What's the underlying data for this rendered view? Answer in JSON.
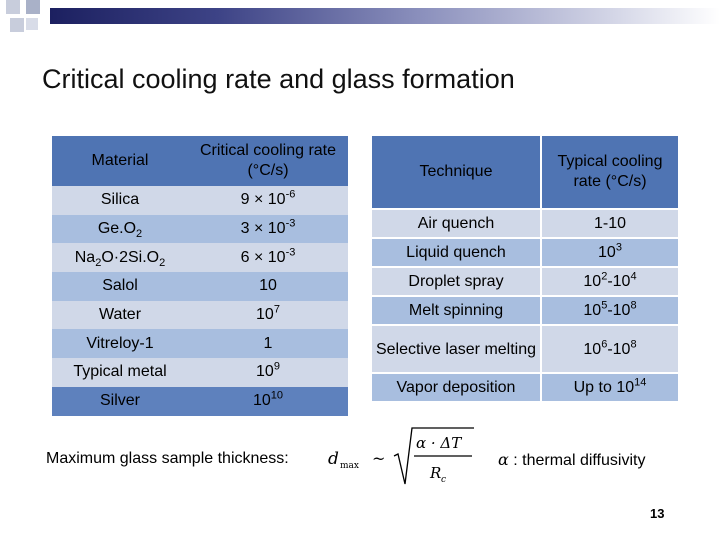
{
  "title": "Critical cooling rate and glass formation",
  "left_table": {
    "headers": [
      "Material",
      "Critical cooling rate (°C/s)"
    ],
    "rows": [
      {
        "material": "Silica",
        "rate_base": "9 × 10",
        "rate_exp": "-6"
      },
      {
        "material_base": "Ge.O",
        "material_sub": "2",
        "rate_base": "3 × 10",
        "rate_exp": "-3"
      },
      {
        "material_a": "Na",
        "material_sub1": "2",
        "material_b": "O·2Si.O",
        "material_sub2": "2",
        "rate_base": "6 × 10",
        "rate_exp": "-3"
      },
      {
        "material": "Salol",
        "rate": "10"
      },
      {
        "material": "Water",
        "rate_base": "10",
        "rate_exp": "7"
      },
      {
        "material": "Vitreloy-1",
        "rate": "1"
      },
      {
        "material": "Typical metal",
        "rate_base": "10",
        "rate_exp": "9"
      },
      {
        "material": "Silver",
        "rate_base": "10",
        "rate_exp": "10"
      }
    ]
  },
  "right_table": {
    "headers": [
      "Technique",
      "Typical cooling rate (°C/s)"
    ],
    "rows": [
      {
        "technique": "Air quench",
        "rate": "1-10"
      },
      {
        "technique": "Liquid quench",
        "rate_base": "10",
        "rate_exp": "3"
      },
      {
        "technique": "Droplet spray",
        "a": "10",
        "ae": "2",
        "b": "-10",
        "be": "4"
      },
      {
        "technique": "Melt spinning",
        "a": "10",
        "ae": "5",
        "b": "-10",
        "be": "8"
      },
      {
        "technique": "Selective laser melting",
        "a": "10",
        "ae": "6",
        "b": "-10",
        "be": "8"
      },
      {
        "technique": "Vapor deposition",
        "rate_base": "Up to 10",
        "rate_exp": "14"
      }
    ]
  },
  "formula_label": "Maximum glass sample thickness:",
  "formula": {
    "lhs": "d",
    "lhs_sub": "max",
    "rel": "~",
    "num": "α · ΔT",
    "den": "R",
    "den_sub": "c"
  },
  "alpha_note": {
    "symbol": "α",
    "text": " : thermal diffusivity"
  },
  "page_number": "13"
}
